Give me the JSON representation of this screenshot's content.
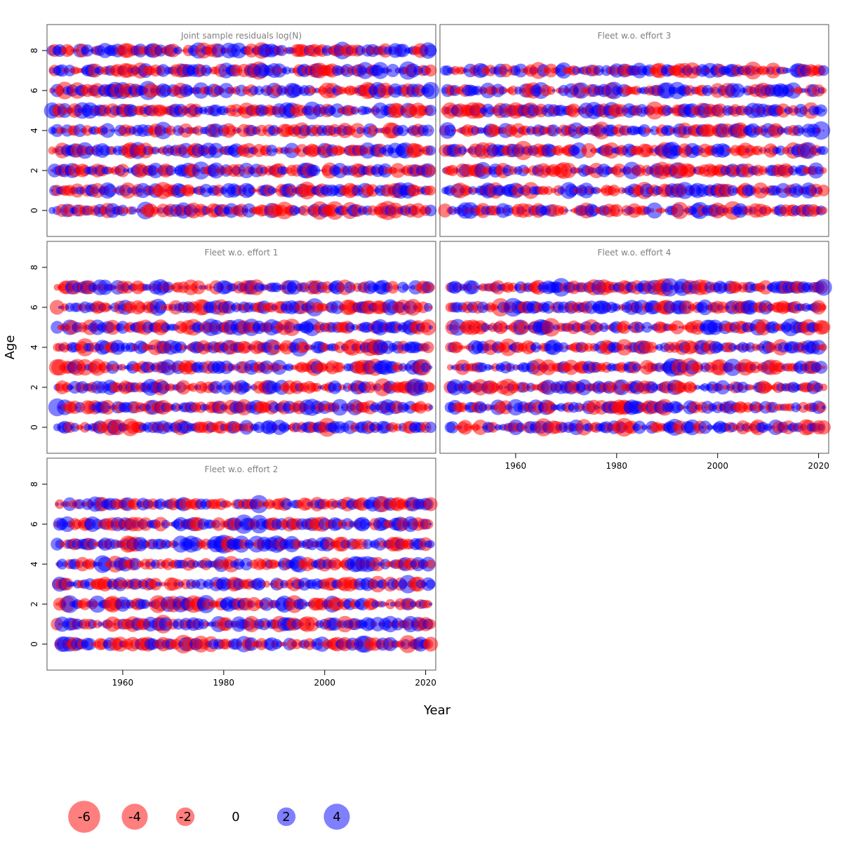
{
  "chart_data": {
    "type": "scatter",
    "subtype": "bubble-residuals",
    "xlabel": "Year",
    "ylabel": "Age",
    "xlim": [
      1945,
      2022
    ],
    "ylim": [
      -1.3,
      9.3
    ],
    "xticks": [
      1960,
      1980,
      2000,
      2020
    ],
    "yticks": [
      0,
      2,
      4,
      6,
      8
    ],
    "colors": {
      "positive": "#0000ff",
      "negative": "#ff0000",
      "frame": "#555555"
    },
    "panels": [
      {
        "title": "Joint sample residuals log(N)",
        "start_year": 1946,
        "end_year": 2021,
        "min_age": 0,
        "max_age": 8,
        "seed": 11
      },
      {
        "title": "Fleet w.o. effort 3",
        "start_year": 1946,
        "end_year": 2021,
        "min_age": 0,
        "max_age": 7,
        "seed": 23
      },
      {
        "title": "Fleet w.o. effort 1",
        "start_year": 1947,
        "end_year": 2021,
        "min_age": 0,
        "max_age": 7,
        "seed": 37
      },
      {
        "title": "Fleet w.o. effort 4",
        "start_year": 1947,
        "end_year": 2021,
        "min_age": 0,
        "max_age": 7,
        "seed": 41
      },
      {
        "title": "Fleet w.o. effort 2",
        "start_year": 1947,
        "end_year": 2021,
        "min_age": 0,
        "max_age": 7,
        "seed": 53
      }
    ],
    "legend": {
      "values": [
        -6,
        -4,
        -2,
        0,
        2,
        4
      ],
      "labels": [
        "-6",
        "-4",
        "-2",
        "0",
        "2",
        "4"
      ]
    }
  }
}
